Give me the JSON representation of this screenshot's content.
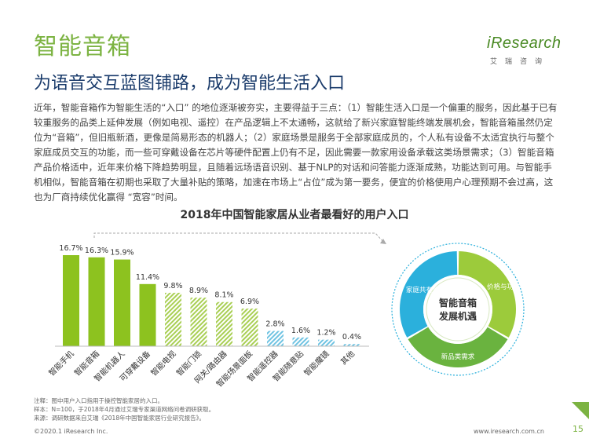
{
  "header": {
    "title": "智能音箱",
    "logo_brand": "iResearch",
    "logo_sub": "艾瑞咨询",
    "subtitle": "为语音交互蓝图铺路，成为智能生活入口"
  },
  "body_text": "近年，智能音箱作为智能生活的“入口” 的地位逐渐被夯实，主要得益于三点：（1）智能生活入口是一个偏重的服务，因此基于已有较重服务的品类上延伸发展（例如电视、遥控）在产品逻辑上不太通畅，这就给了新兴家庭智能终端发展机会，智能音箱虽然仍定位为“音箱”，但旧瓶新酒，更像是简易形态的机器人；（2）家庭场景是服务于全部家庭成员的，个人私有设备不太适宜执行与整个家庭成员交互的功能，而一些可穿戴设备在芯片等硬件配置上仍有不足，因此需要一款家用设备承载这类场景需求；（3）智能音箱产品价格适中，近年来价格下降趋势明显，且随着远场语音识别、基于NLP的对话和问答能力逐渐成熟，功能达到可用。与智能手机相似，智能音箱在初期也采取了大量补贴的策略，加速在市场上“占位”成为第一要务，便宜的价格使用户心理预期不会过高，这也为厂商持续优化赢得 “宽容”时间。",
  "chart_data": {
    "type": "bar",
    "title": "2018年中国智能家居从业者最看好的用户入口",
    "categories": [
      "智能手机",
      "智能音箱",
      "智能机器人",
      "可穿戴设备",
      "智能电视",
      "智能门锁",
      "网关/路由器",
      "智能场景面板",
      "智能遥控器",
      "智能随意贴",
      "智能魔镜",
      "其他"
    ],
    "values": [
      16.7,
      16.3,
      15.9,
      11.4,
      9.8,
      8.9,
      8.1,
      6.9,
      2.8,
      1.6,
      1.2,
      0.4
    ],
    "value_labels": [
      "16.7%",
      "16.3%",
      "15.9%",
      "11.4%",
      "9.8%",
      "8.9%",
      "8.1%",
      "6.9%",
      "2.8%",
      "1.6%",
      "1.2%",
      "0.4%"
    ],
    "ylim": [
      0,
      18
    ],
    "groups": [
      "solid-green",
      "solid-green",
      "solid-green",
      "solid-green",
      "hatched-green",
      "hatched-green",
      "hatched-green",
      "hatched-green",
      "hatched-blue",
      "hatched-blue",
      "hatched-blue",
      "hatched-blue"
    ],
    "colors": {
      "solid-green": "#8dc21f",
      "hatched-green": "#b5d56a",
      "hatched-blue": "#7ecbe6"
    }
  },
  "donut": {
    "center_line1": "智能音箱",
    "center_line2": "发展机遇",
    "segments": [
      {
        "label": "家庭共有性",
        "color": "#2bb0dc"
      },
      {
        "label": "价格与功能可满足消费者预期",
        "color": "#9ccb3b"
      },
      {
        "label": "新品类需求",
        "color": "#6ab33f"
      }
    ]
  },
  "notes": [
    "注释：图中用户入口指用于操控智能家居的入口。",
    "样本：N=100，于2018年4月通过艾瑞专家渠道网络问卷调研获取。",
    "来源：调研数据来自艾瑞《2018年中国智能家居行业研究报告》。"
  ],
  "footer": {
    "copyright": "©2020.1 iResearch Inc.",
    "website": "www.iresearch.com.cn",
    "page": "15"
  }
}
